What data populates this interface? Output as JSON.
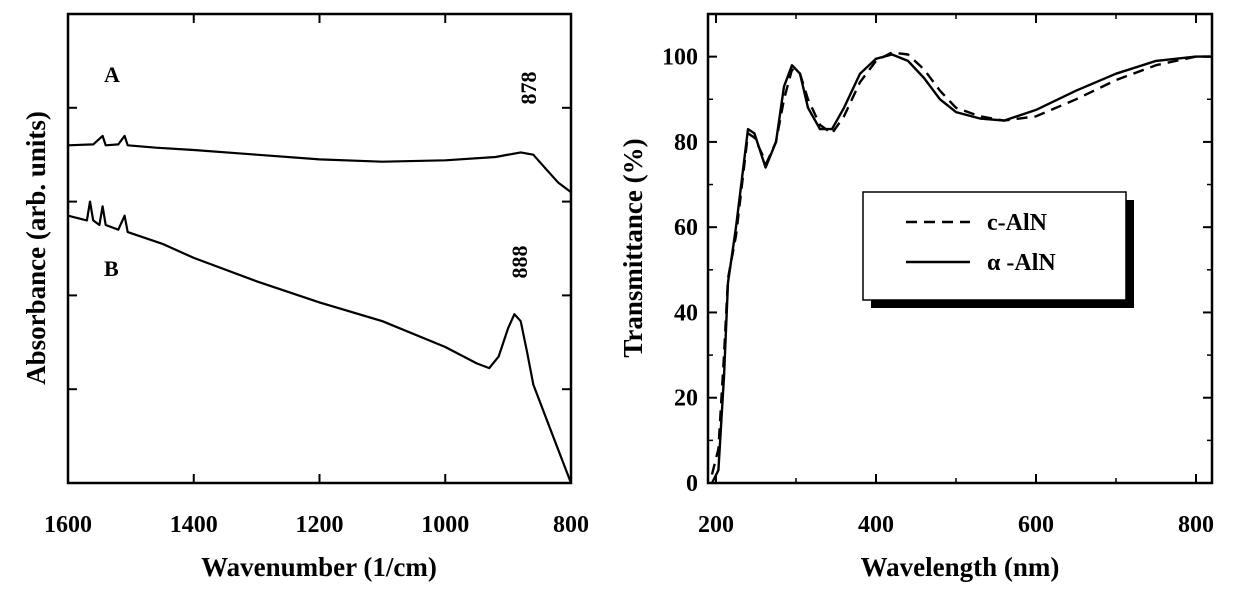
{
  "chart_data": [
    {
      "type": "line",
      "xlabel": "Wavenumber (1/cm)",
      "ylabel": "Absorbance (arb. units)",
      "xlim": [
        1600,
        800
      ],
      "x_reversed": true,
      "xticks": [
        "1600",
        "1400",
        "1200",
        "1000",
        "800"
      ],
      "y_tick_labels": false,
      "series": [
        {
          "name": "A",
          "peak_label": "878",
          "peak_x": 878,
          "points": [
            [
              1600,
              0.72
            ],
            [
              1560,
              0.722
            ],
            [
              1545,
              0.74
            ],
            [
              1540,
              0.72
            ],
            [
              1520,
              0.722
            ],
            [
              1510,
              0.74
            ],
            [
              1505,
              0.72
            ],
            [
              1460,
              0.715
            ],
            [
              1400,
              0.71
            ],
            [
              1300,
              0.7
            ],
            [
              1200,
              0.69
            ],
            [
              1100,
              0.685
            ],
            [
              1000,
              0.688
            ],
            [
              920,
              0.695
            ],
            [
              880,
              0.705
            ],
            [
              860,
              0.7
            ],
            [
              840,
              0.67
            ],
            [
              820,
              0.64
            ],
            [
              805,
              0.625
            ],
            [
              800,
              0.62
            ]
          ]
        },
        {
          "name": "B",
          "peak_label": "888",
          "peak_x": 888,
          "points": [
            [
              1600,
              0.57
            ],
            [
              1570,
              0.56
            ],
            [
              1565,
              0.6
            ],
            [
              1560,
              0.56
            ],
            [
              1550,
              0.55
            ],
            [
              1545,
              0.59
            ],
            [
              1540,
              0.55
            ],
            [
              1520,
              0.54
            ],
            [
              1510,
              0.57
            ],
            [
              1505,
              0.535
            ],
            [
              1450,
              0.51
            ],
            [
              1400,
              0.48
            ],
            [
              1300,
              0.43
            ],
            [
              1200,
              0.385
            ],
            [
              1100,
              0.345
            ],
            [
              1000,
              0.29
            ],
            [
              950,
              0.255
            ],
            [
              930,
              0.245
            ],
            [
              915,
              0.27
            ],
            [
              900,
              0.33
            ],
            [
              890,
              0.36
            ],
            [
              880,
              0.345
            ],
            [
              870,
              0.28
            ],
            [
              860,
              0.21
            ],
            [
              840,
              0.14
            ],
            [
              820,
              0.07
            ],
            [
              800,
              0.0
            ]
          ]
        }
      ]
    },
    {
      "type": "line",
      "xlabel": "Wavelength (nm)",
      "ylabel": "Transmittance (%)",
      "xlim": [
        190,
        820
      ],
      "ylim": [
        0,
        110
      ],
      "xticks": [
        "200",
        "400",
        "600",
        "800"
      ],
      "yticks": [
        "0",
        "20",
        "40",
        "60",
        "80",
        "100"
      ],
      "legend_position": "center-right",
      "series": [
        {
          "name": "c-AlN",
          "style": "dashed",
          "points": [
            [
              195,
              2
            ],
            [
              203,
              8
            ],
            [
              210,
              30
            ],
            [
              215,
              48
            ],
            [
              225,
              58
            ],
            [
              240,
              82
            ],
            [
              248,
              81
            ],
            [
              263,
              75
            ],
            [
              275,
              80
            ],
            [
              285,
              90
            ],
            [
              295,
              97
            ],
            [
              305,
              96
            ],
            [
              315,
              90
            ],
            [
              330,
              84
            ],
            [
              345,
              82
            ],
            [
              360,
              86
            ],
            [
              380,
              94
            ],
            [
              400,
              99
            ],
            [
              420,
              101
            ],
            [
              440,
              100.5
            ],
            [
              460,
              97
            ],
            [
              480,
              92
            ],
            [
              500,
              88
            ],
            [
              530,
              86
            ],
            [
              560,
              85
            ],
            [
              600,
              86
            ],
            [
              650,
              90
            ],
            [
              700,
              94.5
            ],
            [
              750,
              98
            ],
            [
              800,
              100
            ],
            [
              820,
              100
            ]
          ]
        },
        {
          "name": "α -AlN",
          "style": "solid",
          "points": [
            [
              195,
              0
            ],
            [
              203,
              3
            ],
            [
              210,
              25
            ],
            [
              215,
              47
            ],
            [
              225,
              60
            ],
            [
              240,
              83
            ],
            [
              248,
              82
            ],
            [
              262,
              74
            ],
            [
              275,
              80
            ],
            [
              285,
              93
            ],
            [
              295,
              98
            ],
            [
              305,
              96
            ],
            [
              315,
              88
            ],
            [
              330,
              83
            ],
            [
              345,
              83
            ],
            [
              360,
              88
            ],
            [
              380,
              96
            ],
            [
              400,
              99.5
            ],
            [
              420,
              100.5
            ],
            [
              440,
              99
            ],
            [
              460,
              95
            ],
            [
              480,
              90
            ],
            [
              500,
              87
            ],
            [
              530,
              85.5
            ],
            [
              560,
              85
            ],
            [
              600,
              87.5
            ],
            [
              650,
              92
            ],
            [
              700,
              96
            ],
            [
              750,
              99
            ],
            [
              800,
              100
            ],
            [
              820,
              100
            ]
          ]
        }
      ]
    }
  ]
}
